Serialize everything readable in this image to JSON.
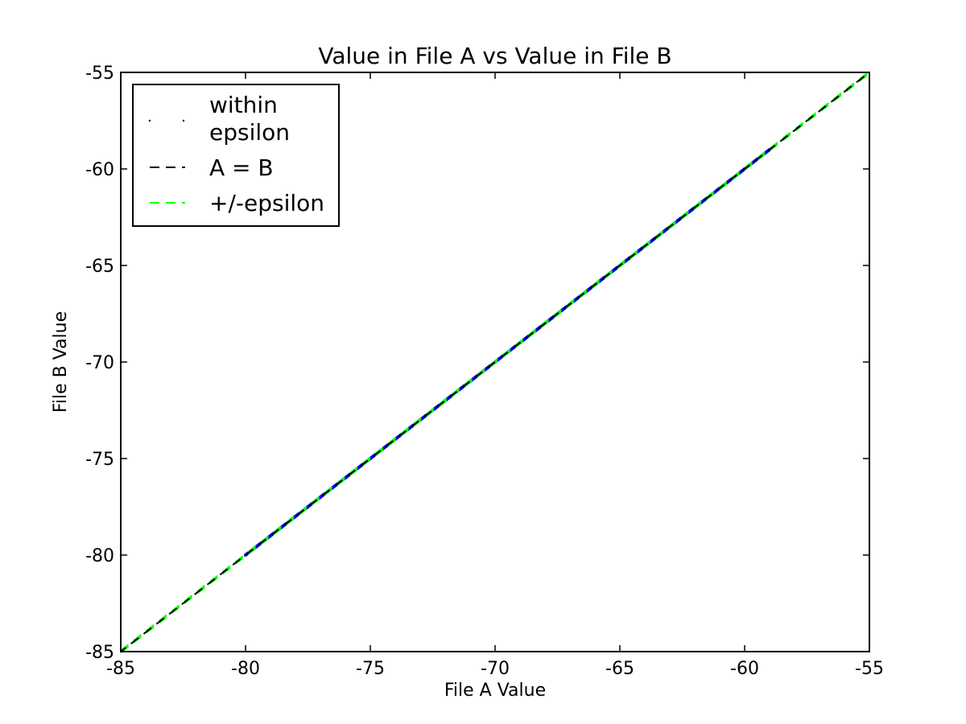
{
  "chart_data": {
    "type": "scatter",
    "title": "Value in File A vs Value in File B",
    "xlabel": "File A Value",
    "ylabel": "File B Value",
    "xlim": [
      -85,
      -55
    ],
    "ylim": [
      -85,
      -55
    ],
    "xticks": [
      -85,
      -80,
      -75,
      -70,
      -65,
      -60,
      -55
    ],
    "yticks": [
      -85,
      -80,
      -75,
      -70,
      -65,
      -60,
      -55
    ],
    "grid": false,
    "legend_position": "top-left",
    "series": [
      {
        "name": "within epsilon",
        "kind": "points",
        "color": "#0000ff",
        "x": [
          -80.0,
          -79.0,
          -78.0,
          -77.0,
          -76.0,
          -75.0,
          -74.0,
          -73.0,
          -72.0,
          -71.0,
          -70.0,
          -69.0,
          -68.0,
          -67.0,
          -66.0,
          -65.0,
          -64.0,
          -63.0,
          -62.0,
          -61.0,
          -60.0,
          -59.0
        ],
        "y": [
          -80.0,
          -79.0,
          -78.0,
          -77.0,
          -76.0,
          -75.0,
          -74.0,
          -73.0,
          -72.0,
          -71.0,
          -70.0,
          -69.0,
          -68.0,
          -67.0,
          -66.0,
          -65.0,
          -64.0,
          -63.0,
          -62.0,
          -61.0,
          -60.0,
          -59.0
        ]
      },
      {
        "name": "A = B",
        "kind": "dashed-line",
        "color": "#000000",
        "x": [
          -85,
          -55
        ],
        "y": [
          -85,
          -55
        ]
      },
      {
        "name": "+/-epsilon",
        "kind": "dashed-line",
        "color": "#00ff00",
        "x": [
          -85,
          -55
        ],
        "y": [
          -85,
          -55
        ]
      }
    ],
    "legend_labels": {
      "within_line1": "within",
      "within_line2": "epsilon",
      "equal": "A = B",
      "epsilon": "+/-epsilon"
    }
  }
}
